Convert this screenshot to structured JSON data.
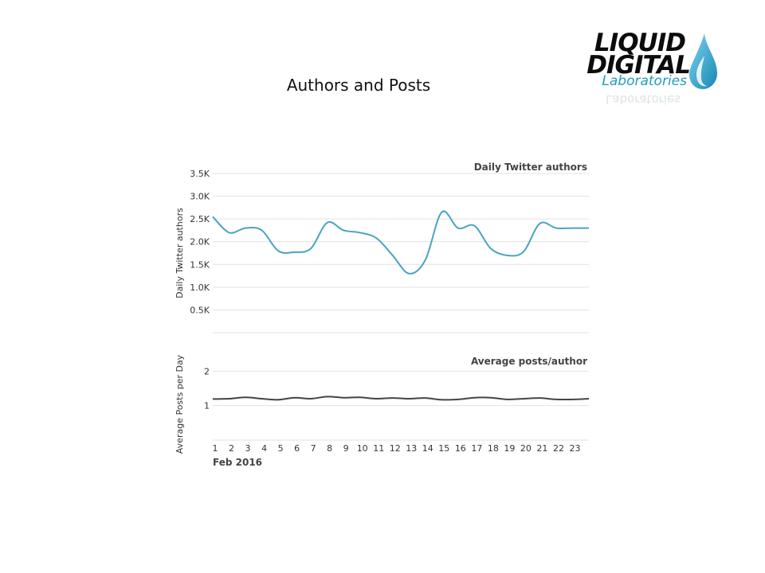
{
  "page": {
    "title": "Authors and Posts"
  },
  "logo": {
    "line1": "LIQUID",
    "line2": "DIGITAL",
    "line3": "Laboratories"
  },
  "colors": {
    "authors_line": "#4aa3c2",
    "posts_line": "#444444",
    "grid": "#e2e2e2"
  },
  "chart_data": [
    {
      "type": "line",
      "title": "Daily Twitter authors",
      "ylabel": "Daily Twitter authors",
      "x": [
        1,
        2,
        3,
        4,
        5,
        6,
        7,
        8,
        9,
        10,
        11,
        12,
        13,
        14,
        15,
        16,
        17,
        18,
        19,
        20,
        21,
        22,
        23,
        24
      ],
      "yticks": [
        0.5,
        1.0,
        1.5,
        2.0,
        2.5,
        3.0,
        3.5
      ],
      "ytick_labels": [
        "0.5K",
        "1.0K",
        "1.5K",
        "2.0K",
        "2.5K",
        "3.0K",
        "3.5K"
      ],
      "ylim": [
        0,
        3.5
      ],
      "series": [
        {
          "values": [
            2.55,
            2.2,
            2.3,
            2.25,
            1.8,
            1.77,
            1.85,
            2.42,
            2.25,
            2.2,
            2.08,
            1.7,
            1.3,
            1.6,
            2.65,
            2.3,
            2.35,
            1.85,
            1.7,
            1.78,
            2.4,
            2.3,
            2.3,
            2.3
          ]
        }
      ],
      "grid": true
    },
    {
      "type": "line",
      "title": "Average posts/author",
      "ylabel": "Average Posts per Day",
      "x": [
        1,
        2,
        3,
        4,
        5,
        6,
        7,
        8,
        9,
        10,
        11,
        12,
        13,
        14,
        15,
        16,
        17,
        18,
        19,
        20,
        21,
        22,
        23,
        24
      ],
      "yticks": [
        1,
        2
      ],
      "ytick_labels": [
        "1",
        "2"
      ],
      "ylim": [
        0,
        2.1
      ],
      "series": [
        {
          "values": [
            1.19,
            1.2,
            1.24,
            1.2,
            1.17,
            1.23,
            1.2,
            1.26,
            1.23,
            1.24,
            1.2,
            1.22,
            1.2,
            1.22,
            1.17,
            1.18,
            1.23,
            1.23,
            1.18,
            1.2,
            1.22,
            1.18,
            1.18,
            1.2
          ]
        }
      ],
      "grid": true
    }
  ],
  "x_axis": {
    "tick_labels": [
      "1",
      "2",
      "3",
      "4",
      "5",
      "6",
      "7",
      "8",
      "9",
      "10",
      "11",
      "12",
      "13",
      "14",
      "15",
      "16",
      "17",
      "18",
      "19",
      "20",
      "21",
      "22",
      "23"
    ],
    "month_label": "Feb 2016"
  }
}
